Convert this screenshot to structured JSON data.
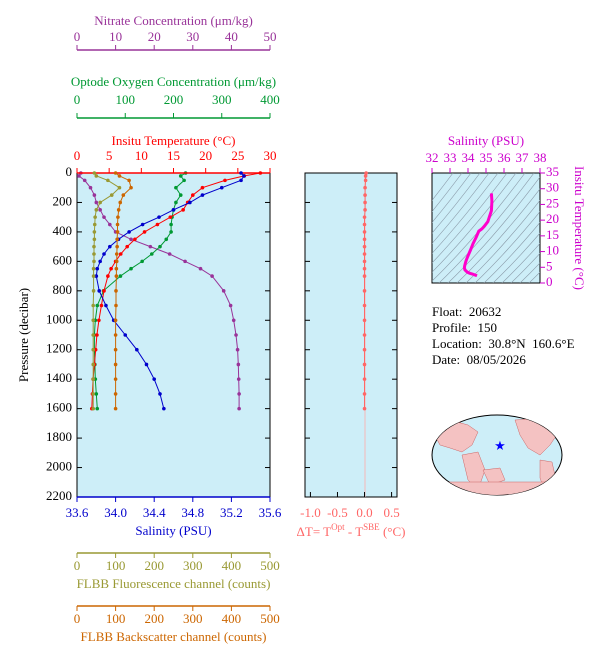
{
  "chart_data": [
    {
      "type": "profile",
      "ylabel": "Pressure (decibar)",
      "ylim": [
        0,
        2200
      ],
      "y_inverted": true,
      "yticks": [
        0,
        200,
        400,
        600,
        800,
        1000,
        1200,
        1400,
        1600,
        1800,
        2000,
        2200
      ],
      "pressure": [
        0,
        20,
        50,
        100,
        150,
        200,
        250,
        300,
        350,
        400,
        450,
        500,
        550,
        600,
        650,
        700,
        800,
        900,
        1000,
        1100,
        1200,
        1300,
        1400,
        1500,
        1600
      ],
      "axes": [
        {
          "title": "Nitrate Concentration (μm/kg)",
          "color": "#993399",
          "xlim": [
            0,
            50
          ],
          "xticks": [
            0,
            10,
            20,
            30,
            40,
            50
          ],
          "values": [
            1,
            0.5,
            2,
            3.5,
            4.5,
            5,
            6,
            7,
            8.5,
            10,
            14,
            19,
            24,
            28,
            32,
            35,
            38,
            39.8,
            40.6,
            41.2,
            41.6,
            41.8,
            41.9,
            42,
            42
          ]
        },
        {
          "title": "Optode Oxygen Concentration (μm/kg)",
          "color": "#009933",
          "xlim": [
            0,
            400
          ],
          "xticks": [
            0,
            100,
            200,
            300,
            400
          ],
          "values": [
            225,
            215,
            222,
            205,
            215,
            205,
            200,
            197,
            195,
            195,
            185,
            172,
            155,
            135,
            112,
            90,
            55,
            42,
            38,
            36,
            36,
            37,
            38,
            40,
            42
          ]
        },
        {
          "title": "Insitu Temperature (°C)",
          "color": "#ff0000",
          "xlim": [
            0,
            30
          ],
          "xticks": [
            0,
            5,
            10,
            15,
            20,
            25,
            30
          ],
          "values": [
            28.5,
            26,
            23,
            19.5,
            18,
            17.2,
            16.5,
            14.5,
            12.5,
            10.5,
            9,
            7.8,
            6.8,
            6,
            5.3,
            4.8,
            4.2,
            3.8,
            3.4,
            3.1,
            2.9,
            2.7,
            2.5,
            2.4,
            2.3
          ]
        },
        {
          "title": "Salinity (PSU)",
          "color": "#0000cc",
          "xlim": [
            33.6,
            35.6
          ],
          "xticks": [
            33.6,
            {
              "value": 34,
              "label": "34.0"
            },
            34.4,
            34.8,
            35.2,
            35.6
          ],
          "values": [
            35.3,
            35.33,
            35.3,
            35.1,
            34.9,
            34.77,
            34.6,
            34.45,
            34.28,
            34.14,
            34.03,
            33.94,
            33.88,
            33.84,
            33.81,
            33.8,
            33.83,
            33.9,
            33.98,
            34.1,
            34.22,
            34.32,
            34.4,
            34.46,
            34.5
          ]
        },
        {
          "title": "FLBB Fluorescence channel (counts)",
          "color": "#999933",
          "xlim": [
            0,
            500
          ],
          "xticks": [
            0,
            100,
            200,
            300,
            400,
            500
          ],
          "values": [
            45,
            50,
            80,
            110,
            90,
            60,
            50,
            47,
            46,
            45,
            45,
            44,
            44,
            44,
            43,
            43,
            43,
            42,
            42,
            42,
            42,
            42,
            42,
            42,
            42
          ]
        },
        {
          "title": "FLBB Backscatter channel (counts)",
          "color": "#cc6600",
          "xlim": [
            0,
            500
          ],
          "xticks": [
            0,
            100,
            200,
            300,
            400,
            500
          ],
          "values": [
            100,
            110,
            135,
            140,
            120,
            112,
            108,
            106,
            105,
            105,
            104,
            104,
            103,
            103,
            102,
            102,
            101,
            101,
            100,
            100,
            100,
            100,
            100,
            100,
            100
          ]
        }
      ]
    },
    {
      "type": "delta",
      "xlabel_parts": [
        "ΔT= T",
        "Opt",
        " - T",
        "SBE",
        " (°C)"
      ],
      "color": "#ff6666",
      "xlim": [
        -1.1,
        0.6
      ],
      "xticks": [
        {
          "value": -1,
          "label": "-1.0"
        },
        -0.5,
        {
          "value": 0,
          "label": "0.0"
        },
        0.5
      ],
      "values": [
        0.03,
        0.02,
        0.02,
        0.01,
        0.01,
        0.01,
        0.01,
        0,
        0,
        0,
        0,
        0,
        0,
        0,
        0,
        0,
        0,
        0,
        0,
        0,
        0,
        0,
        0,
        0,
        0
      ]
    },
    {
      "type": "ts",
      "xlabel": "Salinity (PSU)",
      "ylabel": "Insitu Temperature (°C)",
      "color": "#ff00cc",
      "xlim": [
        32,
        38
      ],
      "xticks": [
        32,
        33,
        34,
        35,
        36,
        37,
        38
      ],
      "ylim": [
        0,
        35
      ],
      "yticks": [
        0,
        5,
        10,
        15,
        20,
        25,
        30,
        35
      ]
    }
  ],
  "info": [
    "Float:  20632",
    "Profile:  150",
    "Location:  30.8°N  160.6°E",
    "Date:  08/05/2026"
  ]
}
